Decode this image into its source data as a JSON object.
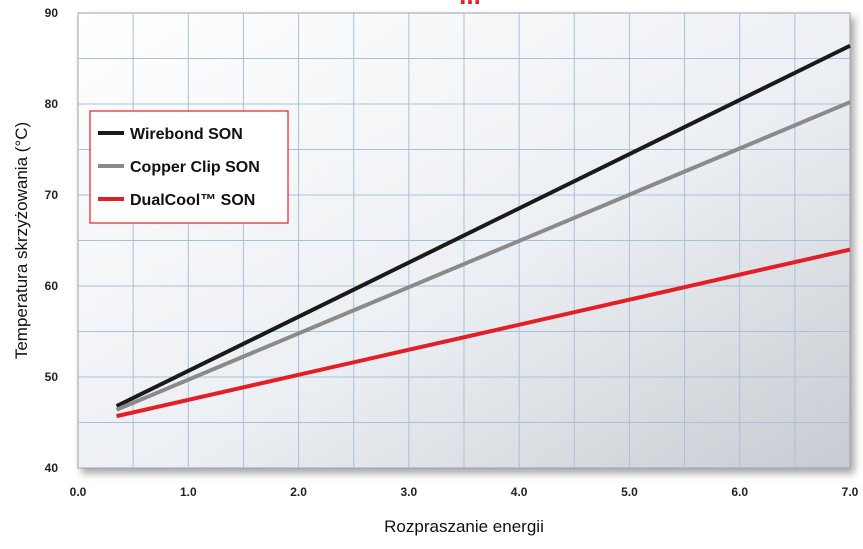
{
  "chart_data": {
    "type": "line",
    "title_fragment": "...",
    "title_color": "#e41e26",
    "xlabel": "Rozpraszanie energii",
    "ylabel": "Temperatura skrzyżowania (°C)",
    "xlim": [
      0,
      7
    ],
    "ylim": [
      40,
      90
    ],
    "x_ticks": [
      0,
      1,
      2,
      3,
      4,
      5,
      6,
      7
    ],
    "x_tick_labels": [
      "0.0",
      "1.0",
      "2.0",
      "3.0",
      "4.0",
      "5.0",
      "6.0",
      "7.0"
    ],
    "y_ticks": [
      40,
      50,
      60,
      70,
      80,
      90
    ],
    "y_tick_labels": [
      "40",
      "50",
      "60",
      "70",
      "80",
      "90"
    ],
    "grid": true,
    "legend_position": "top-left",
    "series": [
      {
        "name": "Wirebond SON",
        "color": "#1a1a1a",
        "x": [
          0.35,
          7.0
        ],
        "y": [
          46.8,
          86.4
        ]
      },
      {
        "name": "Copper Clip SON",
        "color": "#8a8a8a",
        "x": [
          0.35,
          7.0
        ],
        "y": [
          46.4,
          80.2
        ]
      },
      {
        "name": "DualCool™ SON",
        "color": "#e41e26",
        "x": [
          0.35,
          7.0
        ],
        "y": [
          45.7,
          64.0
        ]
      }
    ]
  }
}
